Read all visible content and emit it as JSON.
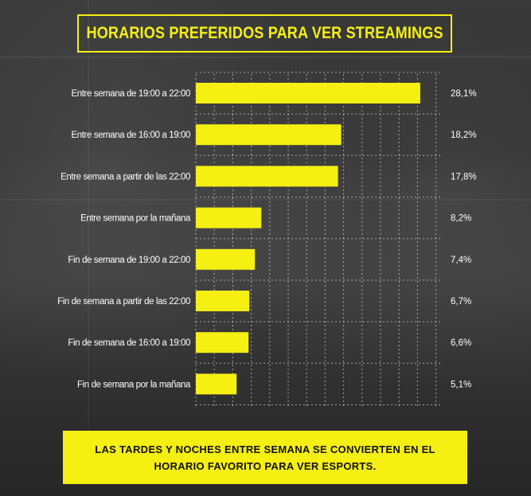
{
  "header": {
    "title": "HORARIOS PREFERIDOS PARA VER STREAMINGS"
  },
  "colors": {
    "accent": "#f5ef12",
    "background": "#2e2e2e",
    "text": "#ffffff"
  },
  "chart_data": {
    "type": "bar",
    "orientation": "horizontal",
    "title": "HORARIOS PREFERIDOS PARA VER STREAMINGS",
    "categories": [
      "Entre semana de 19:00 a 22:00",
      "Entre semana de 16:00 a 19:00",
      "Entre semana a partir de las 22:00",
      "Entre semana por la mañana",
      "Fin de semana de 19:00 a 22:00",
      "Fin de semana a partir de las 22:00",
      "Fin de semana de 16:00 a 19:00",
      "Fin de semana por la mañana"
    ],
    "values": [
      28.1,
      18.2,
      17.8,
      8.2,
      7.4,
      6.7,
      6.6,
      5.1
    ],
    "value_labels": [
      "28,1%",
      "18,2%",
      "17,8%",
      "8,2%",
      "7,4%",
      "6,7%",
      "6,6%",
      "5,1%"
    ],
    "xlim": [
      0,
      30
    ],
    "grid": true,
    "bar_color": "#f5ef12"
  },
  "footer": {
    "text": "LAS TARDES Y NOCHES ENTRE SEMANA SE CONVIERTEN EN EL HORARIO FAVORITO PARA VER ESPORTS."
  }
}
